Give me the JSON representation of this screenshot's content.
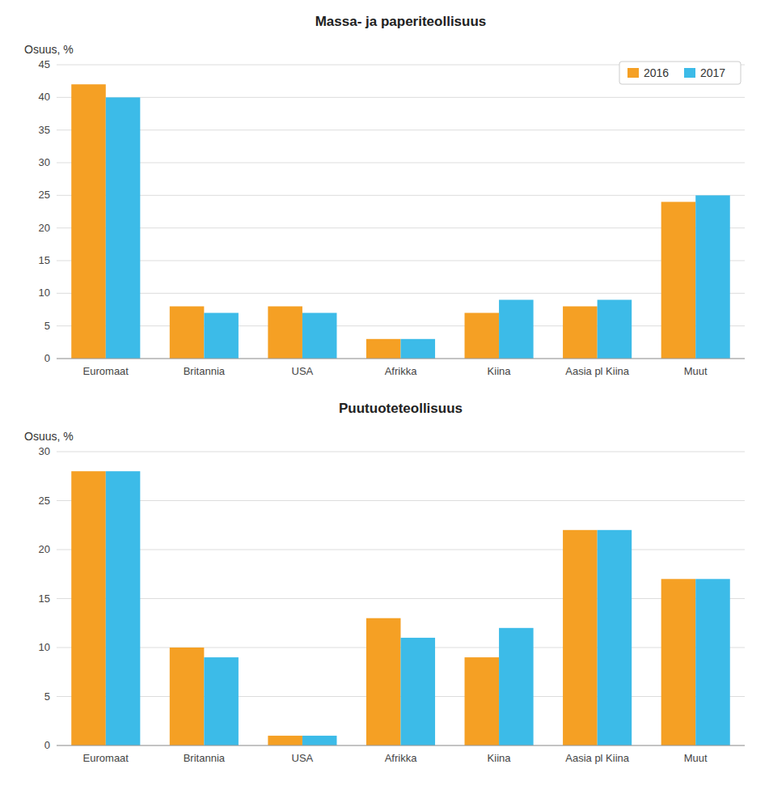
{
  "chart_data": [
    {
      "type": "bar",
      "title": "Massa- ja paperiteollisuus",
      "ylabel": "Osuus, %",
      "categories": [
        "Euromaat",
        "Britannia",
        "USA",
        "Afrikka",
        "Kiina",
        "Aasia pl Kiina",
        "Muut"
      ],
      "series": [
        {
          "name": "2016",
          "color": "#F5A024",
          "values": [
            42,
            8,
            8,
            3,
            7,
            8,
            24
          ]
        },
        {
          "name": "2017",
          "color": "#3CBBE8",
          "values": [
            40,
            7,
            7,
            3,
            9,
            9,
            25
          ]
        }
      ],
      "ylim": [
        0,
        45
      ],
      "yticks": [
        0,
        5,
        10,
        15,
        20,
        25,
        30,
        35,
        40,
        45
      ],
      "grid": true,
      "legend": "upper right"
    },
    {
      "type": "bar",
      "title": "Puutuoteteollisuus",
      "ylabel": "Osuus, %",
      "categories": [
        "Euromaat",
        "Britannia",
        "USA",
        "Afrikka",
        "Kiina",
        "Aasia pl Kiina",
        "Muut"
      ],
      "series": [
        {
          "color": "#F5A024",
          "values": [
            28,
            10,
            1,
            13,
            9,
            22,
            17
          ]
        },
        {
          "color": "#3CBBE8",
          "values": [
            28,
            9,
            1,
            11,
            12,
            22,
            17
          ]
        }
      ],
      "ylim": [
        0,
        30
      ],
      "yticks": [
        0,
        5,
        10,
        15,
        20,
        25,
        30
      ],
      "grid": true
    }
  ]
}
